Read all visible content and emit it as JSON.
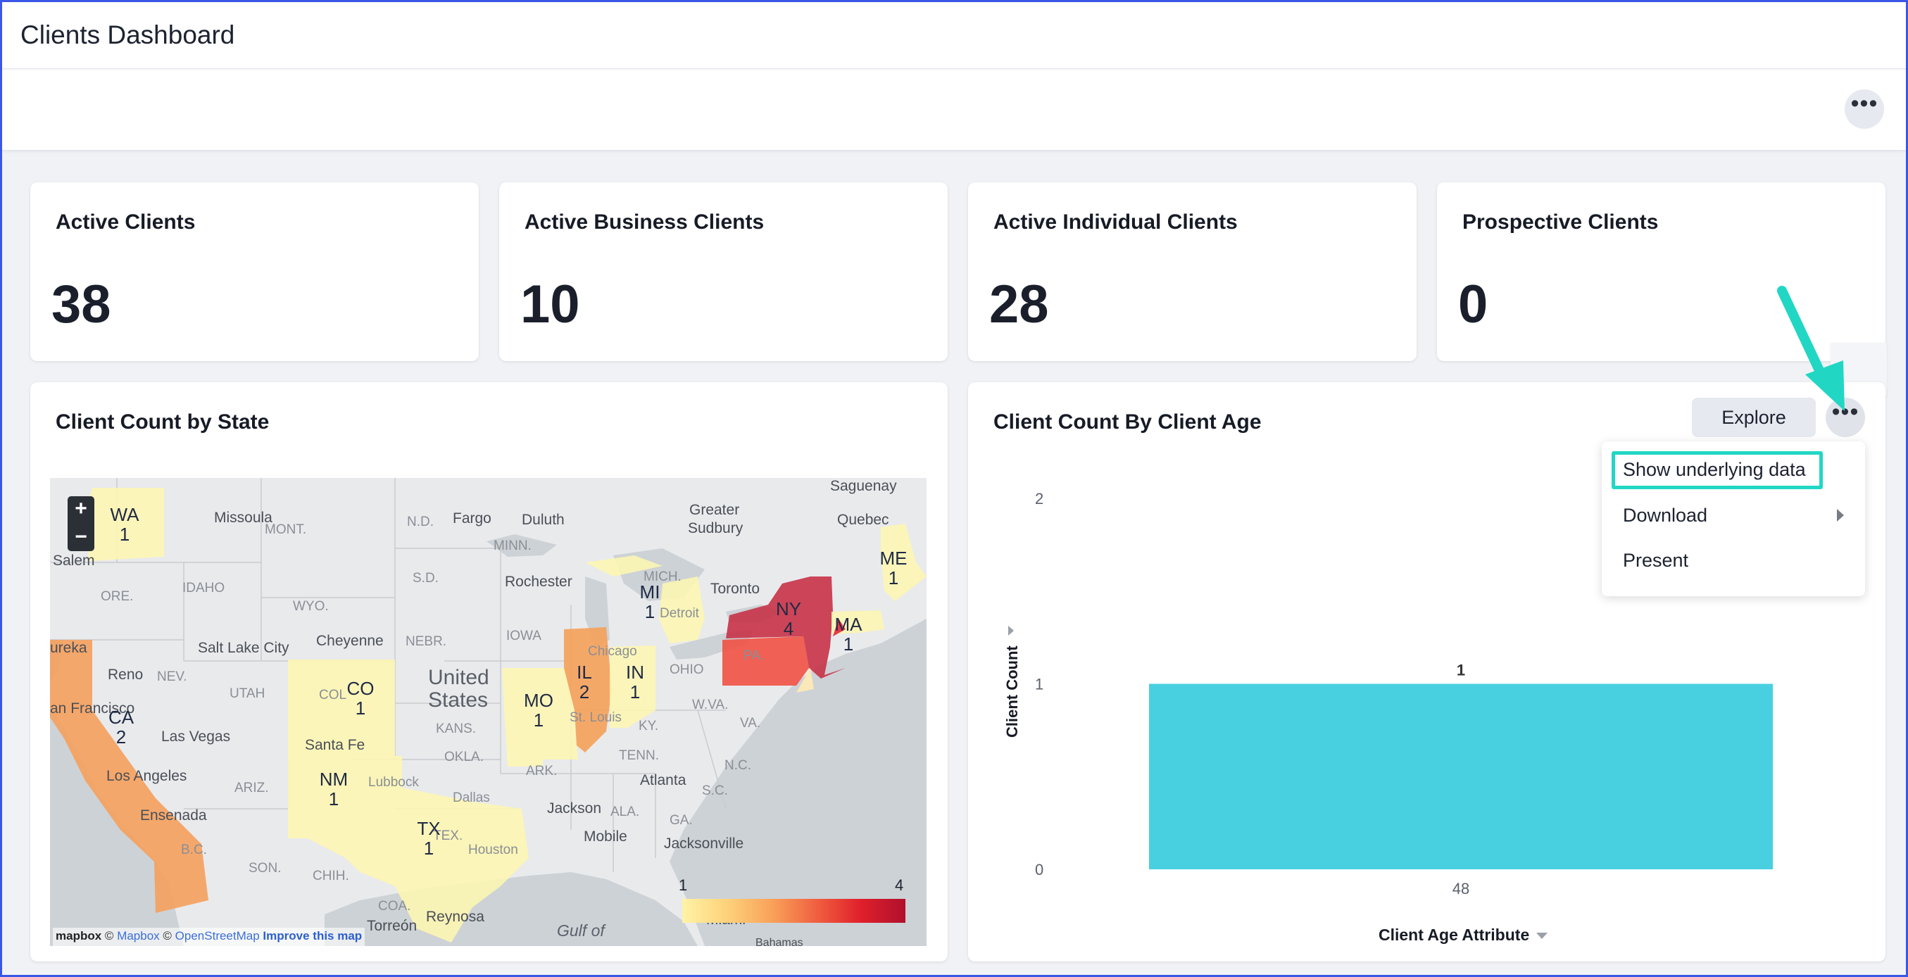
{
  "header": {
    "title": "Clients Dashboard",
    "more_icon": "more-horizontal-icon"
  },
  "kpis": [
    {
      "title": "Active Clients",
      "value": "38"
    },
    {
      "title": "Active Business Clients",
      "value": "10"
    },
    {
      "title": "Active Individual Clients",
      "value": "28"
    },
    {
      "title": "Prospective Clients",
      "value": "0"
    }
  ],
  "map_panel": {
    "title": "Client Count by State",
    "zoom_in": "+",
    "zoom_out": "−",
    "states": [
      {
        "abbr": "WA",
        "count": "1"
      },
      {
        "abbr": "CA",
        "count": "2"
      },
      {
        "abbr": "CO",
        "count": "1"
      },
      {
        "abbr": "NM",
        "count": "1"
      },
      {
        "abbr": "TX",
        "count": "1"
      },
      {
        "abbr": "MO",
        "count": "1"
      },
      {
        "abbr": "IL",
        "count": "2"
      },
      {
        "abbr": "IN",
        "count": "1"
      },
      {
        "abbr": "MI",
        "count": "1"
      },
      {
        "abbr": "NY",
        "count": "4"
      },
      {
        "abbr": "MA",
        "count": "1"
      },
      {
        "abbr": "ME",
        "count": "1"
      }
    ],
    "places": {
      "missoula": "Missoula",
      "mont": "MONT.",
      "nd": "N.D.",
      "fargo": "Fargo",
      "duluth": "Duluth",
      "minn": "MINN.",
      "greater_sudbury_1": "Greater",
      "greater_sudbury_2": "Sudbury",
      "saguenay": "Saguenay",
      "quebec": "Quebec",
      "salem": "Salem",
      "idaho": "IDAHO",
      "wyo": "WYO.",
      "sd": "S.D.",
      "rochester": "Rochester",
      "mich": "MICH.",
      "toronto": "Toronto",
      "ore": "ORE.",
      "salt_lake_city": "Salt Lake City",
      "cheyenne": "Cheyenne",
      "nebr": "NEBR.",
      "iowa": "IOWA",
      "detroit": "Detroit",
      "pa": "PA.",
      "eureka": "ureka",
      "reno": "Reno",
      "nev": "NEV.",
      "utah": "UTAH",
      "united_1": "United",
      "states_1": "States",
      "chicago": "Chicago",
      "ohio": "OHIO",
      "san_francisco": "an Francisco",
      "las_vegas": "Las Vegas",
      "kans": "KANS.",
      "st_louis": "St. Louis",
      "ky": "KY.",
      "wva": "W.VA.",
      "va": "VA.",
      "santa_fe": "Santa Fe",
      "okla": "OKLA.",
      "tenn": "TENN.",
      "nc": "N.C.",
      "los_angeles": "Los Angeles",
      "ariz": "ARIZ.",
      "lubbock": "Lubbock",
      "ark": "ARK.",
      "atlanta": "Atlanta",
      "sc": "S.C.",
      "dallas": "Dallas",
      "ensenada": "Ensenada",
      "jackson": "Jackson",
      "ala": "ALA.",
      "ga": "GA.",
      "bc": "B.C.",
      "mobile": "Mobile",
      "jacksonville": "Jacksonville",
      "son": "SON.",
      "chih": "CHIH.",
      "houston": "Houston",
      "coa": "COA.",
      "torreon": "Torreón",
      "reynosa": "Reynosa",
      "gulf_of": "Gulf of",
      "miami": "Miami",
      "bahamas": "Bahamas",
      "cota": "COL",
      "tex": "TEX."
    },
    "legend": {
      "min": "1",
      "max": "4"
    },
    "attribution": {
      "mapbox_logo": "mapbox",
      "copy1": "©",
      "mapbox": "Mapbox",
      "copy2": "©",
      "osm": "OpenStreetMap",
      "improve": "Improve this map"
    }
  },
  "age_panel": {
    "title": "Client Count By Client Age",
    "explore_label": "Explore",
    "menu": {
      "show_underlying": "Show underlying data",
      "download": "Download",
      "present": "Present"
    }
  },
  "chart_data": {
    "type": "bar",
    "title": "Client Count By Client Age",
    "xlabel": "Client Age Attribute",
    "ylabel": "Client Count",
    "categories": [
      "48"
    ],
    "values": [
      1
    ],
    "data_labels": [
      "1"
    ],
    "ylim": [
      0,
      2
    ],
    "yticks": [
      "0",
      "1",
      "2"
    ],
    "bar_color": "#48d0e0",
    "grid": false
  },
  "colors": {
    "accent_annotation": "#21d7c4",
    "frame": "#3a57e8",
    "map_low": "#fff3a6",
    "map_high": "#b0102c"
  }
}
